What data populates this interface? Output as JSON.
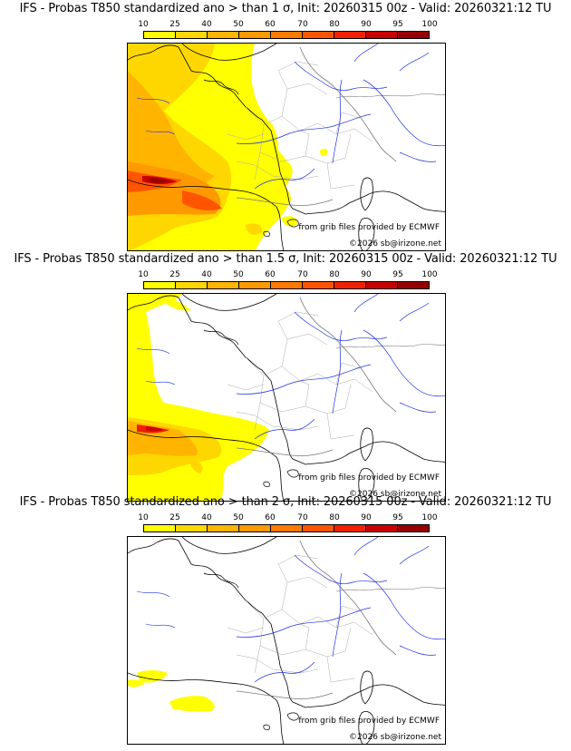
{
  "scale": {
    "ticks": [
      "10",
      "25",
      "40",
      "50",
      "60",
      "70",
      "80",
      "90",
      "95",
      "100"
    ],
    "colors": [
      "#ffff00",
      "#ffd700",
      "#ffb400",
      "#ff9900",
      "#ff7a00",
      "#ff5500",
      "#f02000",
      "#c80000",
      "#960000",
      "#500000"
    ]
  },
  "credits": {
    "grib": "from grib files provided by ECMWF",
    "copyright": "©2026 sb@irizone.net"
  },
  "panels": [
    {
      "title": "IFS - Probas T850  standardized ano > than 1 σ, Init: 20260315 00z - Valid: 20260321:12 TU"
    },
    {
      "title": "IFS - Probas T850  standardized ano > than 1.5 σ, Init: 20260315 00z - Valid: 20260321:12 TU"
    },
    {
      "title": "IFS - Probas T850  standardized ano > than 2 σ, Init: 20260315 00z - Valid: 20260321:12 TU"
    }
  ]
}
